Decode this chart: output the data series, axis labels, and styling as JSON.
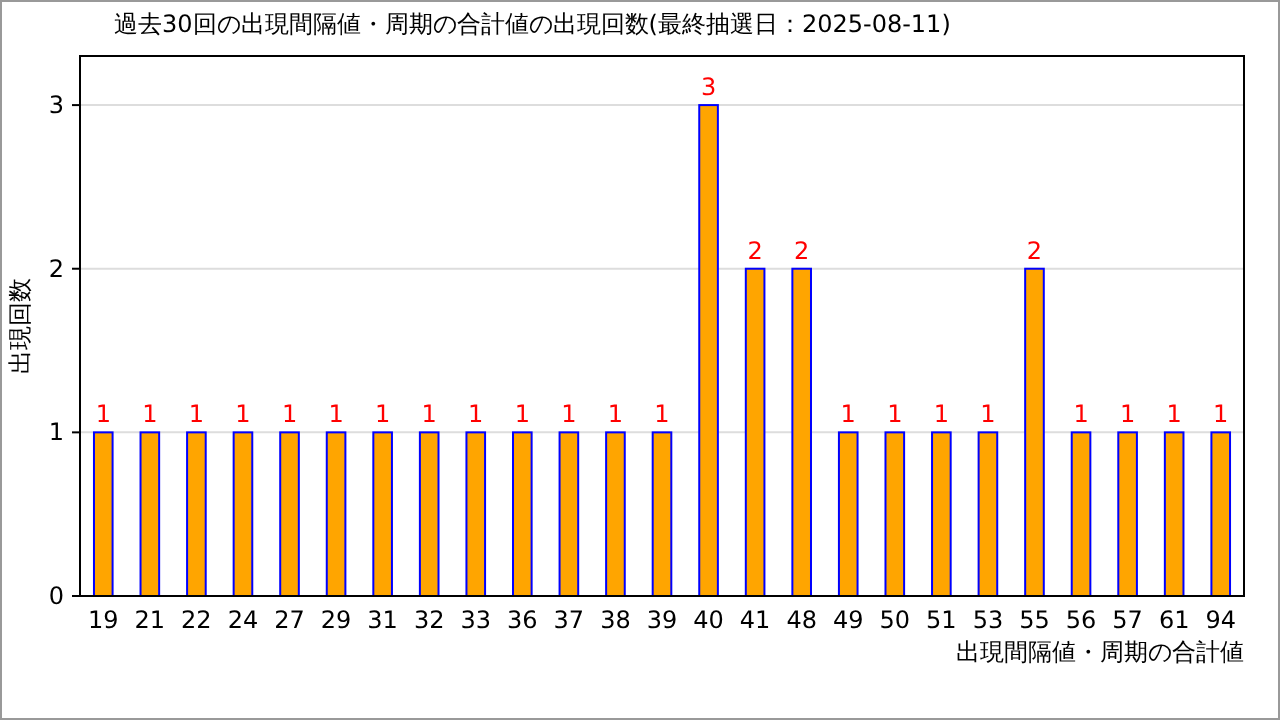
{
  "chart_data": {
    "type": "bar",
    "title": "過去30回の出現間隔値・周期の合計値の出現回数(最終抽選日：2025-08-11)",
    "xlabel": "出現間隔値・周期の合計値",
    "ylabel": "出現回数",
    "categories": [
      "19",
      "21",
      "22",
      "24",
      "27",
      "29",
      "31",
      "32",
      "33",
      "36",
      "37",
      "38",
      "39",
      "40",
      "41",
      "48",
      "49",
      "50",
      "51",
      "53",
      "55",
      "56",
      "57",
      "61",
      "94"
    ],
    "values": [
      1,
      1,
      1,
      1,
      1,
      1,
      1,
      1,
      1,
      1,
      1,
      1,
      1,
      3,
      2,
      2,
      1,
      1,
      1,
      1,
      2,
      1,
      1,
      1,
      1
    ],
    "color": "#ffa500",
    "ylim": [
      0,
      3.3
    ],
    "yticks": [
      0,
      1,
      2,
      3
    ],
    "grid": "y",
    "data_labels": true
  }
}
